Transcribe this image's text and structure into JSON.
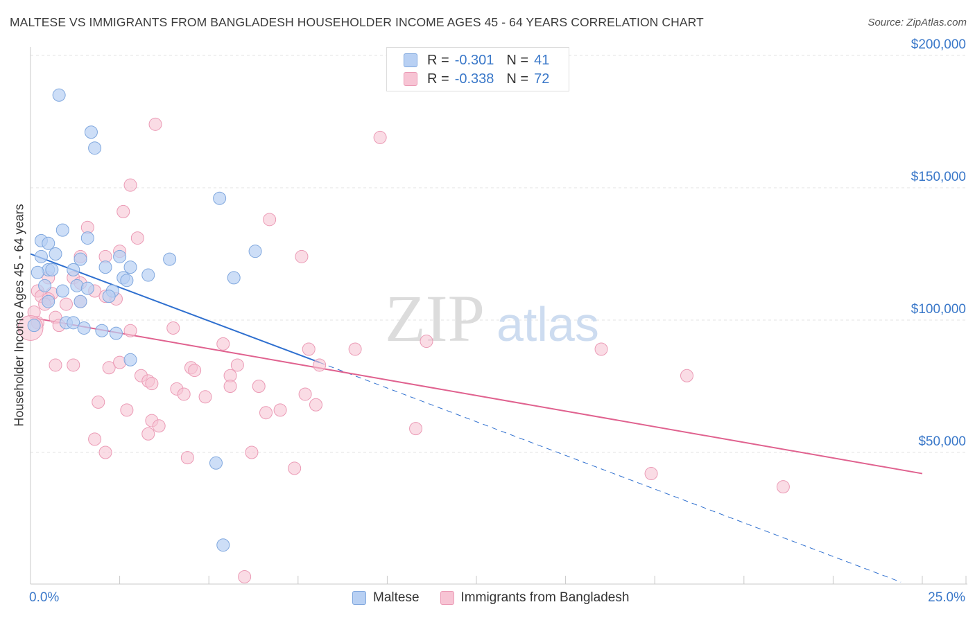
{
  "header": {
    "title": "MALTESE VS IMMIGRANTS FROM BANGLADESH HOUSEHOLDER INCOME AGES 45 - 64 YEARS CORRELATION CHART",
    "source": "Source: ZipAtlas.com"
  },
  "legend": {
    "r_label": "R =",
    "n_label": "N =",
    "rows": [
      {
        "r": "-0.301",
        "n": "41"
      },
      {
        "r": "-0.338",
        "n": "72"
      }
    ]
  },
  "watermark": {
    "zip": "ZIP",
    "atlas": "atlas"
  },
  "colors": {
    "maltese_fill": "#b8d0f3",
    "maltese_stroke": "#7fa7de",
    "maltese_line": "#2e6fcf",
    "bangladesh_fill": "#f7c4d4",
    "bangladesh_stroke": "#eb9ab5",
    "bangladesh_line": "#e0628f",
    "axis_text": "#3a78c9"
  },
  "chart_data": {
    "type": "scatter",
    "title": "MALTESE VS IMMIGRANTS FROM BANGLADESH HOUSEHOLDER INCOME AGES 45 - 64 YEARS CORRELATION CHART",
    "xlabel": "",
    "ylabel": "Householder Income Ages 45 - 64 years",
    "xlim": [
      0,
      25
    ],
    "ylim": [
      0,
      210000
    ],
    "x_ticks": [
      "0.0%",
      "25.0%"
    ],
    "y_ticks": [
      {
        "value": 50000,
        "label": "$50,000"
      },
      {
        "value": 100000,
        "label": "$100,000"
      },
      {
        "value": 150000,
        "label": "$150,000"
      },
      {
        "value": 200000,
        "label": "$200,000"
      }
    ],
    "grid": true,
    "legend_position": "top-center",
    "series": [
      {
        "name": "Maltese",
        "r": -0.301,
        "n": 41,
        "trend": {
          "x0": 0.0,
          "y0": 125000,
          "x1": 8.1,
          "y1": 84000,
          "dash_to_x": 24.4,
          "dash_to_y": 1000
        },
        "points": [
          [
            0.8,
            185000
          ],
          [
            1.7,
            171000
          ],
          [
            1.8,
            165000
          ],
          [
            5.3,
            146000
          ],
          [
            0.9,
            134000
          ],
          [
            0.3,
            130000
          ],
          [
            0.5,
            129000
          ],
          [
            1.6,
            131000
          ],
          [
            6.3,
            126000
          ],
          [
            0.7,
            125000
          ],
          [
            0.3,
            124000
          ],
          [
            1.4,
            123000
          ],
          [
            2.5,
            124000
          ],
          [
            3.9,
            123000
          ],
          [
            0.5,
            119000
          ],
          [
            1.2,
            119000
          ],
          [
            0.2,
            118000
          ],
          [
            0.6,
            119000
          ],
          [
            2.1,
            120000
          ],
          [
            2.8,
            120000
          ],
          [
            3.3,
            117000
          ],
          [
            2.6,
            116000
          ],
          [
            2.7,
            115000
          ],
          [
            5.7,
            116000
          ],
          [
            0.4,
            113000
          ],
          [
            1.3,
            113000
          ],
          [
            0.9,
            111000
          ],
          [
            1.6,
            112000
          ],
          [
            2.3,
            111000
          ],
          [
            2.2,
            109000
          ],
          [
            0.5,
            107000
          ],
          [
            1.4,
            107000
          ],
          [
            0.1,
            98000
          ],
          [
            1.0,
            99000
          ],
          [
            1.2,
            99000
          ],
          [
            1.5,
            97000
          ],
          [
            2.0,
            96000
          ],
          [
            2.4,
            95000
          ],
          [
            2.8,
            85000
          ],
          [
            5.2,
            46000
          ],
          [
            5.4,
            15000
          ]
        ]
      },
      {
        "name": "Immigrants from Bangladesh",
        "r": -0.338,
        "n": 72,
        "trend": {
          "x0": 0.0,
          "y0": 101000,
          "x1": 25.0,
          "y1": 42000
        },
        "points": [
          [
            3.5,
            174000
          ],
          [
            9.8,
            169000
          ],
          [
            2.8,
            151000
          ],
          [
            2.6,
            141000
          ],
          [
            6.7,
            138000
          ],
          [
            1.6,
            135000
          ],
          [
            3.0,
            131000
          ],
          [
            2.5,
            126000
          ],
          [
            2.1,
            124000
          ],
          [
            1.4,
            124000
          ],
          [
            7.6,
            124000
          ],
          [
            0.5,
            116000
          ],
          [
            1.2,
            116000
          ],
          [
            0.2,
            111000
          ],
          [
            1.4,
            114000
          ],
          [
            1.8,
            111000
          ],
          [
            2.1,
            109000
          ],
          [
            0.6,
            110000
          ],
          [
            0.3,
            109000
          ],
          [
            0.5,
            108000
          ],
          [
            0.4,
            106000
          ],
          [
            2.4,
            108000
          ],
          [
            1.0,
            106000
          ],
          [
            1.4,
            107000
          ],
          [
            0.7,
            101000
          ],
          [
            0.1,
            103000
          ],
          [
            0.2,
            99000
          ],
          [
            0.8,
            98000
          ],
          [
            2.8,
            96000
          ],
          [
            4.0,
            97000
          ],
          [
            5.4,
            91000
          ],
          [
            7.8,
            89000
          ],
          [
            9.1,
            89000
          ],
          [
            11.1,
            92000
          ],
          [
            16.0,
            89000
          ],
          [
            0.7,
            83000
          ],
          [
            1.2,
            83000
          ],
          [
            2.2,
            82000
          ],
          [
            2.5,
            84000
          ],
          [
            4.5,
            82000
          ],
          [
            4.6,
            81000
          ],
          [
            5.8,
            83000
          ],
          [
            8.1,
            83000
          ],
          [
            3.1,
            79000
          ],
          [
            5.6,
            79000
          ],
          [
            3.3,
            77000
          ],
          [
            3.4,
            76000
          ],
          [
            5.6,
            75000
          ],
          [
            6.4,
            75000
          ],
          [
            4.1,
            74000
          ],
          [
            4.3,
            72000
          ],
          [
            4.9,
            71000
          ],
          [
            7.7,
            72000
          ],
          [
            1.9,
            69000
          ],
          [
            8.0,
            68000
          ],
          [
            2.7,
            66000
          ],
          [
            6.6,
            65000
          ],
          [
            7.0,
            66000
          ],
          [
            3.4,
            62000
          ],
          [
            3.6,
            60000
          ],
          [
            10.8,
            59000
          ],
          [
            3.3,
            57000
          ],
          [
            1.8,
            55000
          ],
          [
            2.1,
            50000
          ],
          [
            6.2,
            50000
          ],
          [
            4.4,
            48000
          ],
          [
            7.4,
            44000
          ],
          [
            18.4,
            79000
          ],
          [
            17.4,
            42000
          ],
          [
            21.1,
            37000
          ],
          [
            6.0,
            3000
          ],
          [
            0.0,
            97000
          ]
        ]
      }
    ]
  }
}
